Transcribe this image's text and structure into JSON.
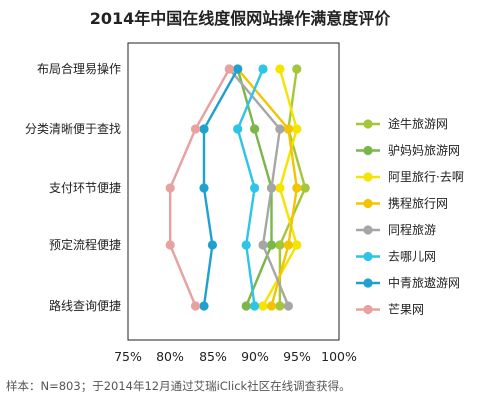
{
  "chart_data": {
    "type": "line",
    "title": "2014年中国在线度假网站操作满意度评价",
    "categories": [
      "布局合理易操作",
      "分类清晰便于查找",
      "支付环节便捷",
      "预定流程便捷",
      "路线查询便捷"
    ],
    "x_ticks": [
      "75%",
      "80%",
      "85%",
      "90%",
      "95%",
      "100%"
    ],
    "xlim": [
      75,
      100
    ],
    "legend_position": "right",
    "grid": false,
    "series": [
      {
        "name": "途牛旅游网",
        "color": "#A4C639",
        "values": [
          95,
          94,
          96,
          93,
          93
        ]
      },
      {
        "name": "驴妈妈旅游网",
        "color": "#7AB648",
        "values": [
          88,
          90,
          92,
          92,
          89
        ]
      },
      {
        "name": "阿里旅行·去啊",
        "color": "#F5E400",
        "values": [
          93,
          95,
          93,
          95,
          91
        ]
      },
      {
        "name": "携程旅行网",
        "color": "#F2C500",
        "values": [
          88,
          94,
          95,
          94,
          92
        ]
      },
      {
        "name": "同程旅游",
        "color": "#A6A6A6",
        "values": [
          87,
          93,
          92,
          91,
          94
        ]
      },
      {
        "name": "去哪儿网",
        "color": "#2EC4E6",
        "values": [
          91,
          88,
          90,
          89,
          90
        ]
      },
      {
        "name": "中青旅遨游网",
        "color": "#1FA1CF",
        "values": [
          88,
          84,
          84,
          85,
          84
        ]
      },
      {
        "name": "芒果网",
        "color": "#E9A0A0",
        "values": [
          87,
          83,
          80,
          80,
          83
        ]
      }
    ]
  },
  "footnote": "样本：N=803；于2014年12月通过艾瑞iClick社区在线调查获得。"
}
